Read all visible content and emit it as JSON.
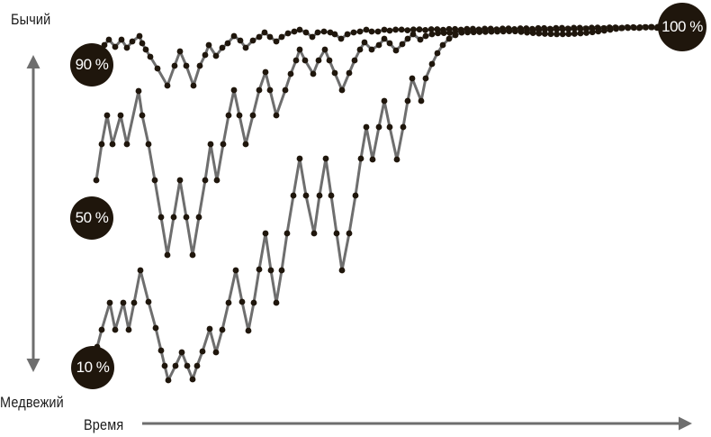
{
  "axis": {
    "top_label": "Бычий",
    "bottom_label": "Медвежий",
    "time_label": "Время"
  },
  "start_points": [
    {
      "label": "90 %"
    },
    {
      "label": "50 %"
    },
    {
      "label": "10 %"
    }
  ],
  "end_point": {
    "label": "100 %"
  },
  "colors": {
    "line": "#6e6e6e",
    "dot": "#1f160c",
    "badge": "#1f160c",
    "arrow": "#6e6e6e"
  }
}
